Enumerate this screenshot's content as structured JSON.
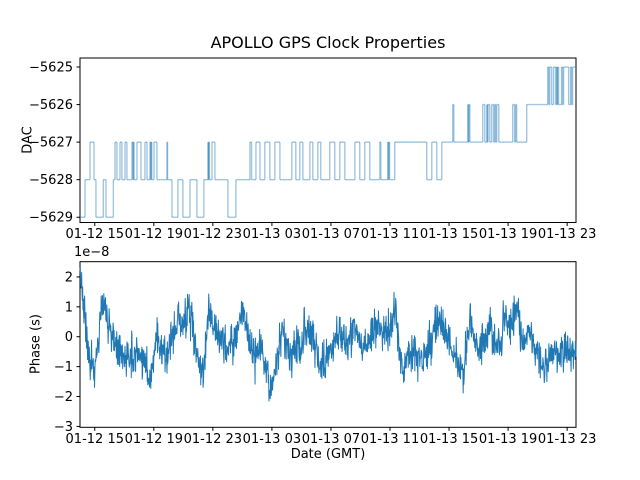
{
  "title": "APOLLO GPS Clock Properties",
  "chart_data": [
    {
      "type": "line",
      "subtype": "step",
      "ylabel": "DAC",
      "color": "#1f77b4",
      "line_alpha": 0.42,
      "xlim": [
        0,
        33.6
      ],
      "ylim": [
        -5629.14,
        -5624.76
      ],
      "x_unit": "hours since 01-12 14:00 GMT",
      "ytick_values": [
        -5625,
        -5626,
        -5627,
        -5628,
        -5629
      ],
      "ytick_labels": [
        "−5625",
        "−5626",
        "−5627",
        "−5628",
        "−5629"
      ],
      "xtick_hours": [
        1,
        5,
        9,
        13,
        17,
        21,
        25,
        29,
        33
      ],
      "xtick_labels": [
        "01-12 15",
        "01-12 19",
        "01-12 23",
        "01-13 03",
        "01-13 07",
        "01-13 11",
        "01-13 15",
        "01-13 19",
        "01-13 23"
      ],
      "steps": [
        [
          0.0,
          -5629
        ],
        [
          0.34,
          -5628
        ],
        [
          0.68,
          -5627
        ],
        [
          0.95,
          -5628
        ],
        [
          1.08,
          -5629
        ],
        [
          1.58,
          -5628
        ],
        [
          1.76,
          -5629
        ],
        [
          2.26,
          -5628
        ],
        [
          2.37,
          -5627
        ],
        [
          2.5,
          -5628
        ],
        [
          2.71,
          -5627
        ],
        [
          2.84,
          -5628
        ],
        [
          3.05,
          -5627
        ],
        [
          3.18,
          -5628
        ],
        [
          3.52,
          -5627
        ],
        [
          3.58,
          -5628
        ],
        [
          3.62,
          -5627
        ],
        [
          3.66,
          -5628
        ],
        [
          3.86,
          -5627
        ],
        [
          4.13,
          -5628
        ],
        [
          4.4,
          -5627
        ],
        [
          4.54,
          -5628
        ],
        [
          4.74,
          -5627
        ],
        [
          4.79,
          -5628
        ],
        [
          4.82,
          -5627
        ],
        [
          4.86,
          -5628
        ],
        [
          5.01,
          -5627
        ],
        [
          5.21,
          -5628
        ],
        [
          5.89,
          -5627
        ],
        [
          5.93,
          -5628
        ],
        [
          6.23,
          -5629
        ],
        [
          6.63,
          -5628
        ],
        [
          6.97,
          -5629
        ],
        [
          7.45,
          -5628
        ],
        [
          7.92,
          -5629
        ],
        [
          8.39,
          -5628
        ],
        [
          8.67,
          -5627
        ],
        [
          8.7,
          -5628
        ],
        [
          8.73,
          -5627
        ],
        [
          8.76,
          -5628
        ],
        [
          8.94,
          -5627
        ],
        [
          9.14,
          -5628
        ],
        [
          10.02,
          -5629
        ],
        [
          10.56,
          -5628
        ],
        [
          11.51,
          -5627
        ],
        [
          11.62,
          -5628
        ],
        [
          11.92,
          -5627
        ],
        [
          12.19,
          -5628
        ],
        [
          12.52,
          -5627
        ],
        [
          12.86,
          -5628
        ],
        [
          13.2,
          -5627
        ],
        [
          13.54,
          -5628
        ],
        [
          14.35,
          -5627
        ],
        [
          14.62,
          -5628
        ],
        [
          14.89,
          -5627
        ],
        [
          15.1,
          -5628
        ],
        [
          15.57,
          -5627
        ],
        [
          15.77,
          -5628
        ],
        [
          16.11,
          -5627
        ],
        [
          16.31,
          -5628
        ],
        [
          16.92,
          -5627
        ],
        [
          17.26,
          -5628
        ],
        [
          17.6,
          -5627
        ],
        [
          17.94,
          -5628
        ],
        [
          18.62,
          -5627
        ],
        [
          18.95,
          -5628
        ],
        [
          19.29,
          -5627
        ],
        [
          19.63,
          -5628
        ],
        [
          20.31,
          -5627
        ],
        [
          20.38,
          -5628
        ],
        [
          20.85,
          -5627
        ],
        [
          20.89,
          -5628
        ],
        [
          20.93,
          -5627
        ],
        [
          20.97,
          -5628
        ],
        [
          21.32,
          -5627
        ],
        [
          23.49,
          -5628
        ],
        [
          23.83,
          -5627
        ],
        [
          24.17,
          -5628
        ],
        [
          24.51,
          -5627
        ],
        [
          25.25,
          -5626
        ],
        [
          25.32,
          -5627
        ],
        [
          26.27,
          -5626
        ],
        [
          26.31,
          -5627
        ],
        [
          26.35,
          -5626
        ],
        [
          26.41,
          -5627
        ],
        [
          27.28,
          -5626
        ],
        [
          27.42,
          -5627
        ],
        [
          27.56,
          -5626
        ],
        [
          27.6,
          -5627
        ],
        [
          27.64,
          -5626
        ],
        [
          27.76,
          -5627
        ],
        [
          27.89,
          -5626
        ],
        [
          28.02,
          -5627
        ],
        [
          28.09,
          -5626
        ],
        [
          28.16,
          -5627
        ],
        [
          28.23,
          -5626
        ],
        [
          28.37,
          -5627
        ],
        [
          29.31,
          -5626
        ],
        [
          29.44,
          -5627
        ],
        [
          29.51,
          -5626
        ],
        [
          29.58,
          -5627
        ],
        [
          30.26,
          -5626
        ],
        [
          31.68,
          -5625
        ],
        [
          31.75,
          -5626
        ],
        [
          31.82,
          -5625
        ],
        [
          31.95,
          -5626
        ],
        [
          32.08,
          -5625
        ],
        [
          32.22,
          -5626
        ],
        [
          32.29,
          -5625
        ],
        [
          32.32,
          -5626
        ],
        [
          32.36,
          -5625
        ],
        [
          32.42,
          -5626
        ],
        [
          32.62,
          -5625
        ],
        [
          32.69,
          -5626
        ],
        [
          32.76,
          -5625
        ],
        [
          33.1,
          -5626
        ],
        [
          33.23,
          -5625
        ],
        [
          33.3,
          -5626
        ],
        [
          33.37,
          -5625
        ],
        [
          33.6,
          -5625
        ]
      ]
    },
    {
      "type": "line",
      "ylabel": "Phase (s)",
      "xlabel": "Date (GMT)",
      "offset_text": "1e−8",
      "color": "#1f77b4",
      "xlim": [
        0,
        33.6
      ],
      "ylim": [
        -3.03,
        2.51
      ],
      "ytick_values": [
        2,
        1,
        0,
        -1,
        -2,
        -3
      ],
      "ytick_labels": [
        "2",
        "1",
        "0",
        "−1",
        "−2",
        "−3"
      ],
      "xtick_hours": [
        1,
        5,
        9,
        13,
        17,
        21,
        25,
        29,
        33
      ],
      "xtick_labels": [
        "01-12 15",
        "01-12 19",
        "01-12 23",
        "01-13 03",
        "01-13 07",
        "01-13 11",
        "01-13 15",
        "01-13 19",
        "01-13 23"
      ],
      "scale_factor": 1e-08,
      "envelope": [
        [
          0,
          2.15
        ],
        [
          0.15,
          1.7
        ],
        [
          0.3,
          0.8
        ],
        [
          0.5,
          -0.2
        ],
        [
          0.7,
          -0.85
        ],
        [
          1.0,
          -1.05
        ],
        [
          1.2,
          -0.3
        ],
        [
          1.45,
          1.1
        ],
        [
          1.6,
          1.25
        ],
        [
          1.8,
          0.6
        ],
        [
          2.1,
          0.1
        ],
        [
          2.5,
          -0.4
        ],
        [
          3.0,
          -0.55
        ],
        [
          3.5,
          -0.7
        ],
        [
          4.0,
          -0.6
        ],
        [
          4.4,
          -0.9
        ],
        [
          4.8,
          -1.45
        ],
        [
          5.0,
          -0.7
        ],
        [
          5.2,
          0.2
        ],
        [
          5.5,
          -0.45
        ],
        [
          5.9,
          -0.55
        ],
        [
          6.3,
          0.1
        ],
        [
          6.7,
          0.65
        ],
        [
          7.0,
          0.4
        ],
        [
          7.4,
          0.9
        ],
        [
          7.7,
          0.1
        ],
        [
          8.1,
          -0.9
        ],
        [
          8.35,
          -1.35
        ],
        [
          8.6,
          0.4
        ],
        [
          8.75,
          1.3
        ],
        [
          9.0,
          0.3
        ],
        [
          9.4,
          -0.15
        ],
        [
          9.9,
          -0.3
        ],
        [
          10.4,
          -0.2
        ],
        [
          10.8,
          0.4
        ],
        [
          11.05,
          0.95
        ],
        [
          11.3,
          0.2
        ],
        [
          11.6,
          -0.5
        ],
        [
          11.85,
          -0.75
        ],
        [
          12.2,
          -0.35
        ],
        [
          12.6,
          -1.0
        ],
        [
          12.9,
          -1.95
        ],
        [
          13.1,
          -1.45
        ],
        [
          13.4,
          -0.8
        ],
        [
          13.7,
          0.2
        ],
        [
          14.0,
          -0.3
        ],
        [
          14.4,
          -0.6
        ],
        [
          14.8,
          -0.35
        ],
        [
          15.2,
          0.1
        ],
        [
          15.5,
          0.3
        ],
        [
          15.9,
          -0.2
        ],
        [
          16.3,
          -0.75
        ],
        [
          16.6,
          -0.9
        ],
        [
          17.0,
          -0.4
        ],
        [
          17.4,
          0.1
        ],
        [
          17.8,
          -0.1
        ],
        [
          18.2,
          -0.2
        ],
        [
          18.6,
          0.25
        ],
        [
          19.0,
          -0.1
        ],
        [
          19.4,
          -0.45
        ],
        [
          19.8,
          -0.1
        ],
        [
          20.2,
          0.3
        ],
        [
          20.6,
          0.2
        ],
        [
          21.0,
          0.1
        ],
        [
          21.4,
          0.9
        ],
        [
          21.6,
          -0.3
        ],
        [
          21.9,
          -1.3
        ],
        [
          22.2,
          -0.8
        ],
        [
          22.6,
          -0.5
        ],
        [
          23.0,
          -0.8
        ],
        [
          23.4,
          -0.5
        ],
        [
          23.8,
          -0.1
        ],
        [
          24.2,
          0.5
        ],
        [
          24.5,
          0.35
        ],
        [
          24.9,
          -0.2
        ],
        [
          25.3,
          -0.5
        ],
        [
          25.7,
          -0.8
        ],
        [
          26.0,
          -1.3
        ],
        [
          26.2,
          -0.2
        ],
        [
          26.45,
          0.7
        ],
        [
          26.7,
          -0.1
        ],
        [
          27.0,
          -0.35
        ],
        [
          27.4,
          -0.1
        ],
        [
          27.8,
          0.35
        ],
        [
          28.1,
          -0.2
        ],
        [
          28.5,
          -0.4
        ],
        [
          28.8,
          1.1
        ],
        [
          29.1,
          0.1
        ],
        [
          29.35,
          0.5
        ],
        [
          29.6,
          1.05
        ],
        [
          29.9,
          -0.2
        ],
        [
          30.2,
          -0.1
        ],
        [
          30.5,
          0.25
        ],
        [
          30.8,
          -0.45
        ],
        [
          31.1,
          -0.7
        ],
        [
          31.5,
          -1.15
        ],
        [
          31.8,
          -0.6
        ],
        [
          32.1,
          -0.5
        ],
        [
          32.5,
          -0.75
        ],
        [
          32.9,
          -0.45
        ],
        [
          33.2,
          -0.55
        ],
        [
          33.6,
          -0.5
        ]
      ],
      "noise_sd": 0.33,
      "noise_seed": 20130113,
      "samples": 1500
    }
  ]
}
